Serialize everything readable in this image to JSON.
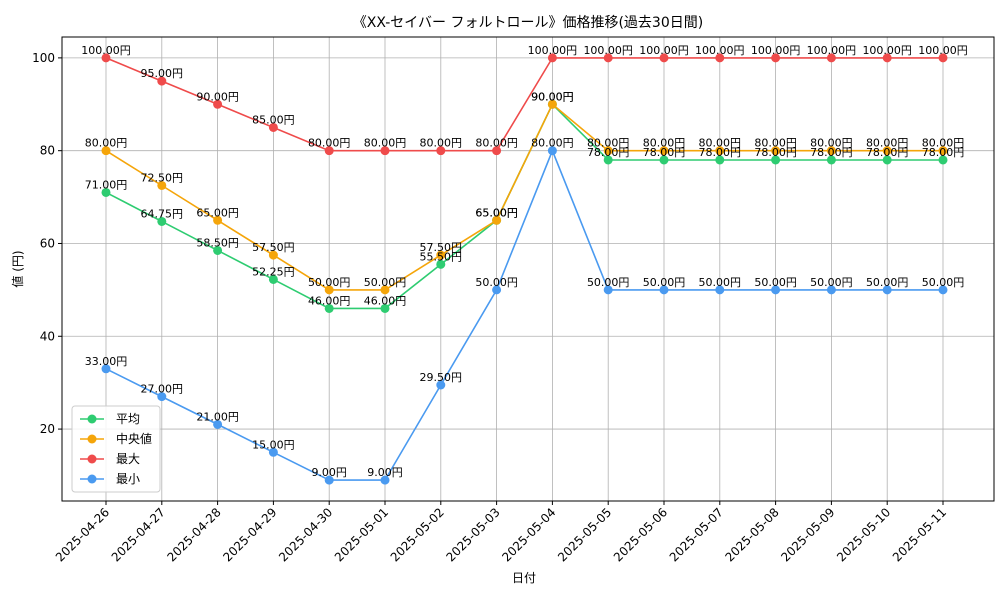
{
  "chart_data": {
    "type": "line",
    "title": "《XX-セイバー フォルトロール》価格推移(過去30日間)",
    "xlabel": "日付",
    "ylabel": "値 (円)",
    "ylim": [
      4.5,
      104.5
    ],
    "yticks": [
      20,
      40,
      60,
      80,
      100
    ],
    "grid": true,
    "legend_position": "lower-left",
    "value_suffix": "円",
    "categories": [
      "2025-04-26",
      "2025-04-27",
      "2025-04-28",
      "2025-04-29",
      "2025-04-30",
      "2025-05-01",
      "2025-05-02",
      "2025-05-03",
      "2025-05-04",
      "2025-05-05",
      "2025-05-06",
      "2025-05-07",
      "2025-05-08",
      "2025-05-09",
      "2025-05-10",
      "2025-05-11"
    ],
    "series": [
      {
        "name": "平均",
        "color": "#2ecc71",
        "values": [
          71.0,
          64.75,
          58.5,
          52.25,
          46.0,
          46.0,
          55.5,
          65.0,
          90.0,
          78.0,
          78.0,
          78.0,
          78.0,
          78.0,
          78.0,
          78.0
        ]
      },
      {
        "name": "中央値",
        "color": "#f5a50a",
        "values": [
          80.0,
          72.5,
          65.0,
          57.5,
          50.0,
          50.0,
          57.5,
          65.0,
          90.0,
          80.0,
          80.0,
          80.0,
          80.0,
          80.0,
          80.0,
          80.0
        ]
      },
      {
        "name": "最大",
        "color": "#ef4b4b",
        "values": [
          100.0,
          95.0,
          90.0,
          85.0,
          80.0,
          80.0,
          80.0,
          80.0,
          100.0,
          100.0,
          100.0,
          100.0,
          100.0,
          100.0,
          100.0,
          100.0
        ]
      },
      {
        "name": "最小",
        "color": "#4a9af0",
        "values": [
          33.0,
          27.0,
          21.0,
          15.0,
          9.0,
          9.0,
          29.5,
          50.0,
          80.0,
          50.0,
          50.0,
          50.0,
          50.0,
          50.0,
          50.0,
          50.0
        ]
      }
    ]
  }
}
